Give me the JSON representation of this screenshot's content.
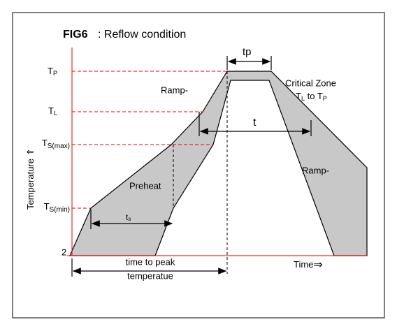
{
  "figure": {
    "code": "FIG6",
    "title": ": Reflow condition",
    "levels": {
      "tp": {
        "main": "T",
        "sub": "P"
      },
      "tl": {
        "main": "T",
        "sub": "L"
      },
      "tsmax": {
        "main": "T",
        "sub": "S(max)"
      },
      "tsmin": {
        "main": "T",
        "sub": "S(min)"
      }
    },
    "origin": "2",
    "y_axis": "Temperature",
    "y_arrow": "⇑",
    "x_axis": "Time",
    "x_arrow": "⇒",
    "intervals": {
      "tp": "tp",
      "t": "t",
      "ts": {
        "main": "t",
        "sub": "s"
      },
      "peak_line1": "time to peak",
      "peak_line2": "temperatue"
    },
    "regions": {
      "ramp_up": "Ramp-",
      "preheat": "Preheat",
      "ramp_down": "Ramp-",
      "critical": "Critical Zone",
      "critical_range": {
        "a": "T",
        "a_sub": "L",
        "to": " to ",
        "b": "T",
        "b_sub": "P"
      }
    }
  }
}
